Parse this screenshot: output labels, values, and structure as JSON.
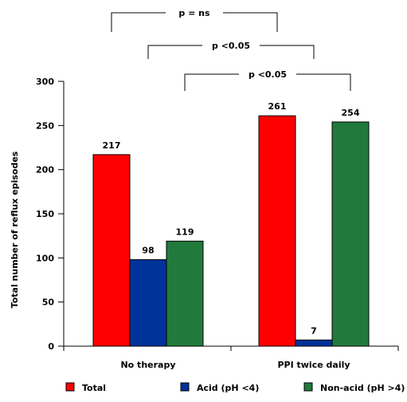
{
  "chart_data": {
    "type": "bar",
    "categories": [
      "No therapy",
      "PPI twice daily"
    ],
    "series": [
      {
        "name": "Total",
        "values": [
          217,
          261
        ],
        "color": "#ff0000"
      },
      {
        "name": "Acid (pH <4)",
        "values": [
          98,
          7
        ],
        "color": "#003399"
      },
      {
        "name": "Non-acid (pH >4)",
        "values": [
          119,
          254
        ],
        "color": "#217a3c"
      }
    ],
    "ylabel": "Total number of reflux episodes",
    "xlabel": "",
    "ylim": [
      0,
      300
    ],
    "yticks": [
      0,
      50,
      100,
      150,
      200,
      250,
      300
    ],
    "grid": false,
    "legend_position": "bottom",
    "comparisons": [
      {
        "label": "p = ns",
        "from": {
          "category": 0,
          "series": 0
        },
        "to": {
          "category": 1,
          "series": 0
        }
      },
      {
        "label": "p <0.05",
        "from": {
          "category": 0,
          "series": 1
        },
        "to": {
          "category": 1,
          "series": 1
        }
      },
      {
        "label": "p <0.05",
        "from": {
          "category": 0,
          "series": 2
        },
        "to": {
          "category": 1,
          "series": 2
        }
      }
    ]
  }
}
